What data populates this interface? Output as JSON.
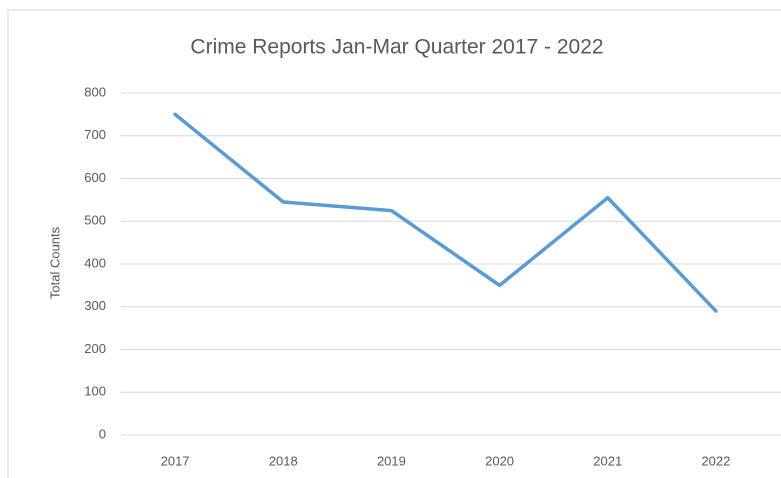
{
  "chart_data": {
    "type": "line",
    "title": "Crime Reports Jan-Mar Quarter 2017 - 2022",
    "y_label": "Total Counts",
    "categories": [
      "2017",
      "2018",
      "2019",
      "2020",
      "2021",
      "2022"
    ],
    "series": [
      {
        "name": "Total Counts",
        "color": "#5b9bd5",
        "values": [
          750,
          545,
          525,
          350,
          555,
          290
        ]
      }
    ],
    "ylim": [
      0,
      800
    ],
    "yticks": [
      0,
      100,
      200,
      300,
      400,
      500,
      600,
      700,
      800
    ],
    "grid": true
  }
}
